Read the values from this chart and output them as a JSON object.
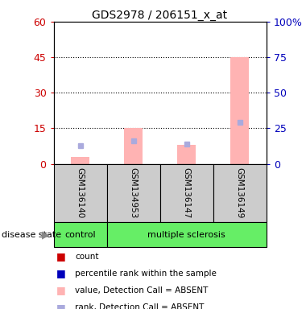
{
  "title": "GDS2978 / 206151_x_at",
  "samples": [
    "GSM136140",
    "GSM134953",
    "GSM136147",
    "GSM136149"
  ],
  "groups": [
    "control",
    "multiple sclerosis",
    "multiple sclerosis",
    "multiple sclerosis"
  ],
  "pink_bar_values": [
    3,
    15,
    8,
    45
  ],
  "blue_dot_values_rank": [
    13,
    16,
    14,
    29
  ],
  "ylim_left": [
    0,
    60
  ],
  "ylim_right": [
    0,
    100
  ],
  "yticks_left": [
    0,
    15,
    30,
    45,
    60
  ],
  "yticks_right": [
    0,
    25,
    50,
    75,
    100
  ],
  "ytick_labels_left": [
    "0",
    "15",
    "30",
    "45",
    "60"
  ],
  "ytick_labels_right": [
    "0",
    "25",
    "50",
    "75",
    "100%"
  ],
  "left_tick_color": "#cc0000",
  "right_tick_color": "#0000bb",
  "pink_bar_color": "#ffb3b3",
  "blue_dot_color": "#aaaadd",
  "control_color": "#66ee66",
  "ms_color": "#66ee66",
  "sample_bg_color": "#cccccc",
  "grid_color": "black",
  "legend_colors": [
    "#cc0000",
    "#0000bb",
    "#ffb3b3",
    "#aaaadd"
  ],
  "legend_labels": [
    "count",
    "percentile rank within the sample",
    "value, Detection Call = ABSENT",
    "rank, Detection Call = ABSENT"
  ],
  "disease_state_label": "disease state",
  "figsize": [
    3.8,
    3.84
  ],
  "dpi": 100
}
